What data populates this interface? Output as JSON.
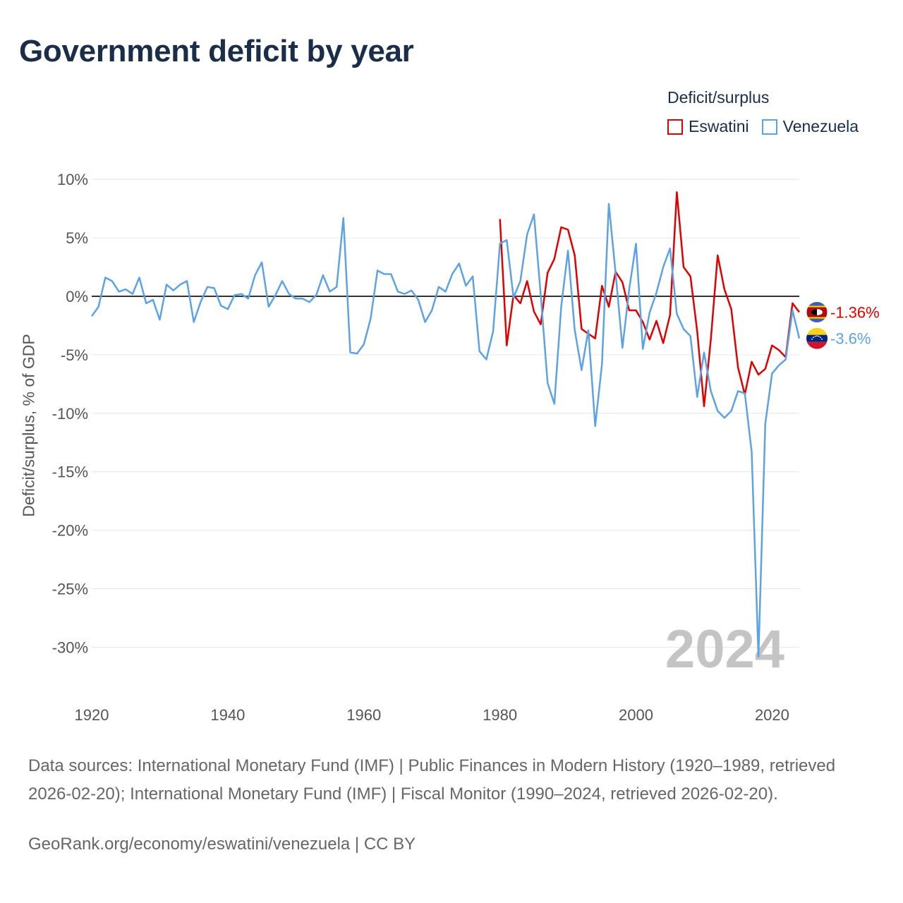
{
  "chart_data": {
    "type": "line",
    "title": "Government deficit by year",
    "legend_title": "Deficit/surplus",
    "ylabel": "Deficit/surplus, % of GDP",
    "xlabel": "",
    "xlim": [
      1920,
      2024
    ],
    "ylim": [
      -33,
      10
    ],
    "y_ticks": [
      10,
      5,
      0,
      -5,
      -10,
      -15,
      -20,
      -25,
      -30
    ],
    "y_tick_labels": [
      "10%",
      "5%",
      "0%",
      "-5%",
      "-10%",
      "-15%",
      "-20%",
      "-25%",
      "-30%"
    ],
    "x_ticks": [
      1920,
      1940,
      1960,
      1980,
      2000,
      2020
    ],
    "x_tick_labels": [
      "1920",
      "1940",
      "1960",
      "1980",
      "2000",
      "2020"
    ],
    "year_watermark": "2024",
    "series": [
      {
        "name": "Eswatini",
        "color": "#e00000",
        "end_label": "-1.36%",
        "x": [
          1980,
          1981,
          1982,
          1983,
          1984,
          1985,
          1986,
          1987,
          1988,
          1989,
          1990,
          1991,
          1992,
          1993,
          1994,
          1995,
          1996,
          1997,
          1998,
          1999,
          2000,
          2001,
          2002,
          2003,
          2004,
          2005,
          2006,
          2007,
          2008,
          2009,
          2010,
          2011,
          2012,
          2013,
          2014,
          2015,
          2016,
          2017,
          2018,
          2019,
          2020,
          2021,
          2022,
          2023,
          2024
        ],
        "values": [
          6.6,
          -4.2,
          0.1,
          -0.6,
          1.3,
          -1.3,
          -2.4,
          2.0,
          3.2,
          5.9,
          5.7,
          3.5,
          -2.8,
          -3.2,
          -3.6,
          0.9,
          -0.9,
          2.1,
          1.2,
          -1.2,
          -1.2,
          -2.2,
          -3.7,
          -2.1,
          -4.0,
          -1.6,
          8.9,
          2.5,
          1.7,
          -3.0,
          -9.4,
          -3.7,
          3.5,
          0.6,
          -1.1,
          -6.1,
          -8.4,
          -5.6,
          -6.7,
          -6.2,
          -4.2,
          -4.6,
          -5.2,
          -0.6,
          -1.36
        ]
      },
      {
        "name": "Venezuela",
        "color": "#5da2e3",
        "end_label": "-3.6%",
        "x": [
          1920,
          1921,
          1922,
          1923,
          1924,
          1925,
          1926,
          1927,
          1928,
          1929,
          1930,
          1931,
          1932,
          1933,
          1934,
          1935,
          1936,
          1937,
          1938,
          1939,
          1940,
          1941,
          1942,
          1943,
          1944,
          1945,
          1946,
          1947,
          1948,
          1949,
          1950,
          1951,
          1952,
          1953,
          1954,
          1955,
          1956,
          1957,
          1958,
          1959,
          1960,
          1961,
          1962,
          1963,
          1964,
          1965,
          1966,
          1967,
          1968,
          1969,
          1970,
          1971,
          1972,
          1973,
          1974,
          1975,
          1976,
          1977,
          1978,
          1979,
          1980,
          1981,
          1982,
          1983,
          1984,
          1985,
          1986,
          1987,
          1988,
          1989,
          1990,
          1991,
          1992,
          1993,
          1994,
          1995,
          1996,
          1997,
          1998,
          1999,
          2000,
          2001,
          2002,
          2003,
          2004,
          2005,
          2006,
          2007,
          2008,
          2009,
          2010,
          2011,
          2012,
          2013,
          2014,
          2015,
          2016,
          2017,
          2018,
          2019,
          2020,
          2021,
          2022,
          2023,
          2024
        ],
        "values": [
          -1.7,
          -0.9,
          1.6,
          1.3,
          0.4,
          0.6,
          0.2,
          1.6,
          -0.6,
          -0.3,
          -2.0,
          1.0,
          0.5,
          1.0,
          1.3,
          -2.2,
          -0.5,
          0.8,
          0.7,
          -0.8,
          -1.1,
          0.1,
          0.2,
          -0.2,
          1.8,
          2.9,
          -0.9,
          0.1,
          1.3,
          0.2,
          -0.2,
          -0.2,
          -0.5,
          0.1,
          1.8,
          0.4,
          0.8,
          6.7,
          -4.8,
          -4.9,
          -4.1,
          -1.9,
          2.2,
          1.9,
          1.9,
          0.4,
          0.2,
          0.5,
          -0.3,
          -2.2,
          -1.2,
          0.8,
          0.4,
          1.9,
          2.8,
          0.9,
          1.7,
          -4.7,
          -5.4,
          -3.0,
          4.5,
          4.8,
          -0.1,
          1.3,
          5.3,
          7.0,
          0.1,
          -7.4,
          -9.2,
          -0.9,
          3.9,
          -2.9,
          -6.3,
          -2.9,
          -11.1,
          -5.8,
          7.9,
          2.0,
          -4.4,
          0.6,
          4.5,
          -4.5,
          -1.4,
          0.3,
          2.5,
          4.1,
          -1.5,
          -2.8,
          -3.4,
          -8.6,
          -4.8,
          -8.1,
          -9.8,
          -10.4,
          -9.8,
          -8.1,
          -8.3,
          -13.3,
          -30.8,
          -10.9,
          -6.6,
          -5.9,
          -5.4,
          -1.2,
          -3.6
        ]
      }
    ]
  },
  "footer": {
    "sources": "Data sources: International Monetary Fund (IMF) | Public Finances in Modern History (1920–1989, retrieved 2026-02-20); International Monetary Fund (IMF) | Fiscal Monitor (1990–2024, retrieved 2026-02-20).",
    "credit": "GeoRank.org/economy/eswatini/venezuela | CC BY"
  },
  "colors": {
    "eswatini": "#e00000",
    "venezuela": "#5da2e3",
    "title": "#1a2e4a",
    "zero_line": "#333333",
    "grid": "#e6e6e6"
  },
  "icons": {
    "eswatini_marker": "eswatini-flag-icon",
    "venezuela_marker": "venezuela-flag-icon"
  }
}
